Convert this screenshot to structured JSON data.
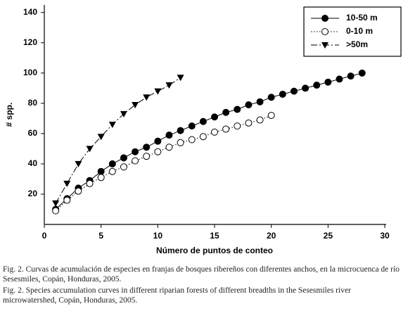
{
  "chart_data": {
    "type": "line",
    "xlabel": "Número de puntos de conteo",
    "ylabel": "# spp.",
    "xlim": [
      0,
      30
    ],
    "xticks": [
      0,
      5,
      10,
      15,
      20,
      25,
      30
    ],
    "ylim": [
      0,
      145
    ],
    "yticks": [
      20,
      40,
      60,
      80,
      100,
      120,
      140
    ],
    "grid": false,
    "legend": "upper right",
    "series": [
      {
        "name": "10-50 m",
        "color": "#000000",
        "marker": "circle-filled",
        "dash": "solid",
        "x": [
          1,
          2,
          3,
          4,
          5,
          6,
          7,
          8,
          9,
          10,
          11,
          12,
          13,
          14,
          15,
          16,
          17,
          18,
          19,
          20,
          21,
          22,
          23,
          24,
          25,
          26,
          27,
          28
        ],
        "values": [
          10,
          17,
          24,
          29,
          35,
          40,
          44,
          48,
          51,
          55,
          59,
          62,
          65,
          68,
          71,
          74,
          76,
          79,
          81,
          84,
          86,
          88,
          90,
          92,
          94,
          96,
          98,
          100
        ]
      },
      {
        "name": "0-10 m",
        "color": "#000000",
        "marker": "circle-open",
        "dash": "dotted",
        "x": [
          1,
          2,
          3,
          4,
          5,
          6,
          7,
          8,
          9,
          10,
          11,
          12,
          13,
          14,
          15,
          16,
          17,
          18,
          19,
          20
        ],
        "values": [
          9,
          16,
          22,
          27,
          31,
          35,
          38,
          42,
          45,
          48,
          51,
          54,
          56,
          58,
          61,
          63,
          65,
          67,
          69,
          72
        ]
      },
      {
        "name": ">50m",
        "color": "#000000",
        "marker": "triangle-down",
        "dash": "dashdot",
        "x": [
          1,
          2,
          3,
          4,
          5,
          6,
          7,
          8,
          9,
          10,
          11,
          12
        ],
        "values": [
          14,
          27,
          40,
          50,
          58,
          66,
          73,
          79,
          84,
          88,
          92,
          97
        ]
      }
    ]
  },
  "captions": [
    "Fig. 2. Curvas de acumulación de especies en franjas de bosques ribereños con diferentes anchos, en la microcuenca de río Sesesmiles, Copán, Honduras, 2005.",
    "Fig. 2. Species accumulation curves in different riparian forests of different breadths in the Sesesmiles river microwatershed, Copán, Honduras, 2005."
  ]
}
